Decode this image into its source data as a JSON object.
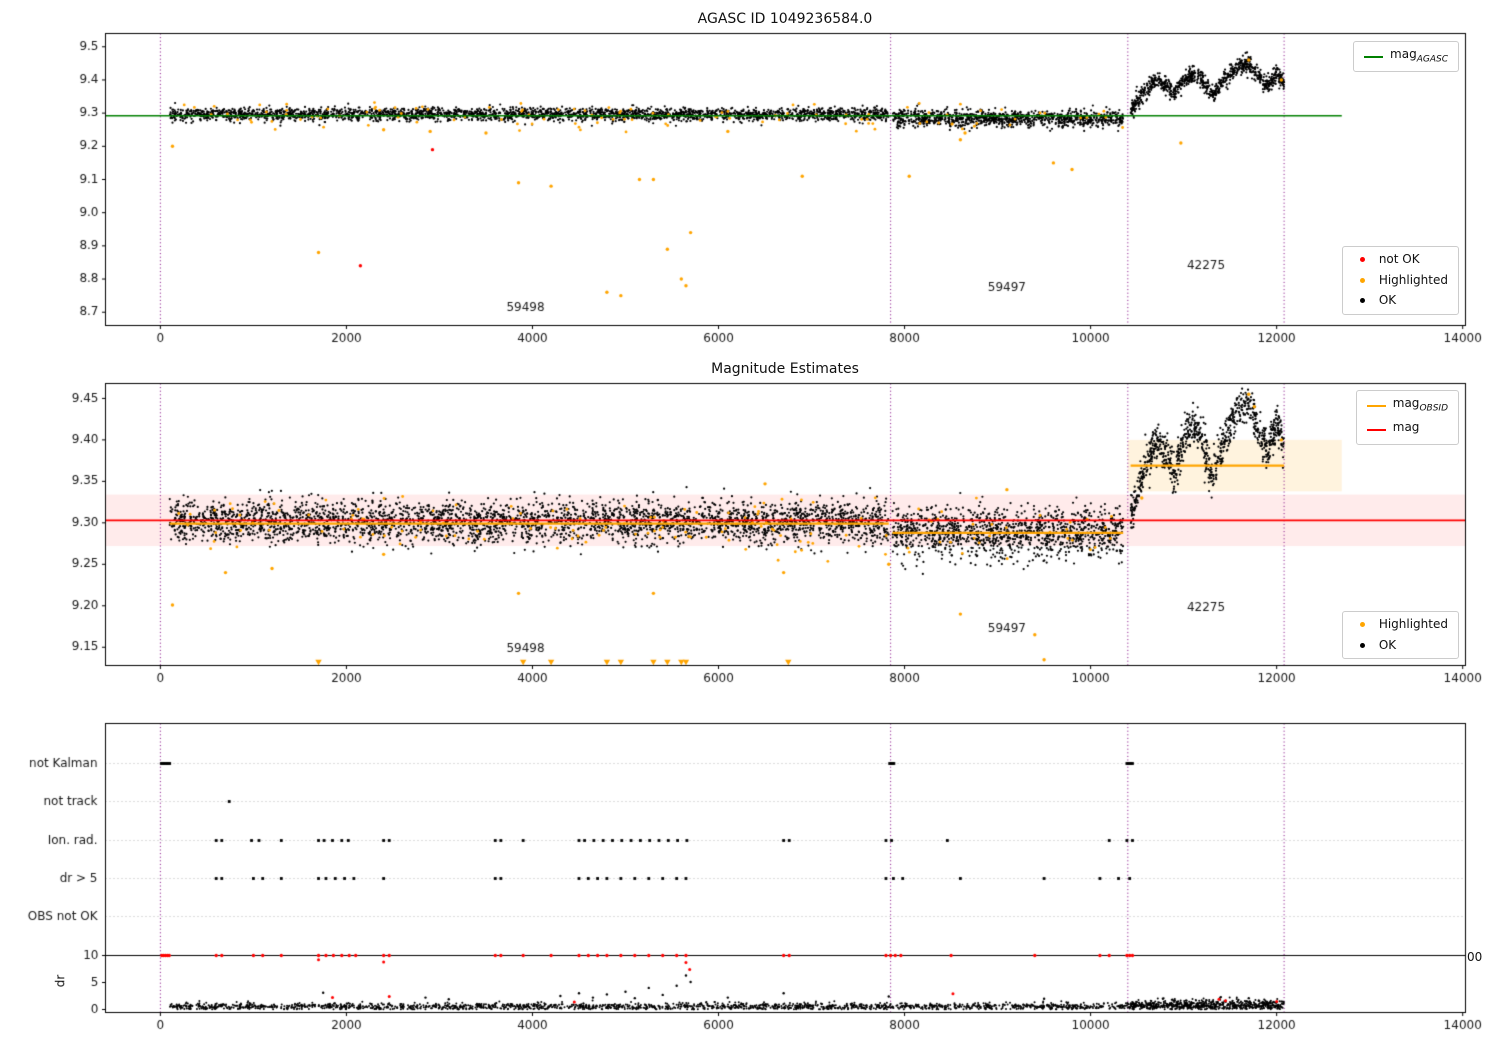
{
  "colors": {
    "vline": "#800080",
    "grid": "#b8b8b8",
    "ok": "#000000",
    "not_ok": "#ff0000",
    "highlighted": "#ffa500",
    "mag_agasc": "#008000",
    "mag": "#ff0000",
    "mag_obsid": "#ffa500"
  },
  "chart_data": [
    {
      "type": "scatter",
      "title": "AGASC ID 1049236584.0",
      "xlim": [
        -590,
        14030
      ],
      "ylim": [
        8.66,
        9.54
      ],
      "xticks": [
        0,
        2000,
        4000,
        6000,
        8000,
        10000,
        12000,
        14000
      ],
      "xtick_labels": [
        "0",
        "2000",
        "4000",
        "6000",
        "8000",
        "10000",
        "12000",
        "14000"
      ],
      "yticks": [
        8.7,
        8.8,
        8.9,
        9.0,
        9.1,
        9.2,
        9.3,
        9.4,
        9.5
      ],
      "ytick_labels": [
        "8.7",
        "8.8",
        "8.9",
        "9.0",
        "9.1",
        "9.2",
        "9.3",
        "9.4",
        "9.5"
      ],
      "vlines": [
        0,
        7850,
        10400,
        12080
      ],
      "lines": [
        {
          "y": 9.292,
          "x0": -590,
          "x1": 12700,
          "color": "#008000",
          "w": 1.6
        }
      ],
      "wave": [
        [
          10430,
          9.31
        ],
        [
          10550,
          9.355
        ],
        [
          10700,
          9.4
        ],
        [
          10800,
          9.385
        ],
        [
          10900,
          9.36
        ],
        [
          11000,
          9.4
        ],
        [
          11100,
          9.42
        ],
        [
          11200,
          9.4
        ],
        [
          11300,
          9.355
        ],
        [
          11450,
          9.405
        ],
        [
          11600,
          9.44
        ],
        [
          11700,
          9.45
        ],
        [
          11800,
          9.415
        ],
        [
          11900,
          9.38
        ],
        [
          12000,
          9.42
        ],
        [
          12080,
          9.39
        ]
      ],
      "clusters": [
        {
          "kind": "band",
          "x0": 100,
          "x1": 7830,
          "n": 2600,
          "mean": 9.296,
          "sd": 0.01,
          "clip": [
            9.245,
            9.335
          ],
          "color": "#000000",
          "r": 1.1
        },
        {
          "kind": "band",
          "x0": 7870,
          "x1": 10350,
          "n": 1000,
          "mean": 9.284,
          "sd": 0.013,
          "clip": [
            9.22,
            9.33
          ],
          "color": "#000000",
          "r": 1.1
        },
        {
          "kind": "wavy",
          "x0": 10430,
          "x1": 12080,
          "n": 850,
          "sd": 0.013,
          "color": "#000000",
          "r": 1.1
        },
        {
          "kind": "band",
          "x0": 100,
          "x1": 7830,
          "n": 90,
          "mean": 9.29,
          "sd": 0.02,
          "clip": [
            9.24,
            9.34
          ],
          "color": "#ffa500",
          "r": 1.4
        },
        {
          "kind": "band",
          "x0": 7870,
          "x1": 10350,
          "n": 25,
          "mean": 9.28,
          "sd": 0.02,
          "clip": [
            9.23,
            9.33
          ],
          "color": "#ffa500",
          "r": 1.4
        }
      ],
      "points_highlighted": [
        [
          130,
          9.2
        ],
        [
          1700,
          8.88
        ],
        [
          2400,
          9.25
        ],
        [
          2900,
          9.245
        ],
        [
          3500,
          9.24
        ],
        [
          3850,
          9.09
        ],
        [
          4200,
          9.08
        ],
        [
          4800,
          8.76
        ],
        [
          4950,
          8.75
        ],
        [
          5150,
          9.1
        ],
        [
          5300,
          9.1
        ],
        [
          5450,
          8.89
        ],
        [
          5600,
          8.8
        ],
        [
          5650,
          8.78
        ],
        [
          5700,
          8.94
        ],
        [
          6100,
          9.245
        ],
        [
          6900,
          9.11
        ],
        [
          8050,
          9.11
        ],
        [
          8600,
          9.22
        ],
        [
          8650,
          9.24
        ],
        [
          9600,
          9.15
        ],
        [
          9800,
          9.13
        ],
        [
          10970,
          9.21
        ],
        [
          11700,
          9.46
        ],
        [
          12050,
          9.4
        ]
      ],
      "points_not_ok": [
        [
          2150,
          8.84
        ],
        [
          2925,
          9.19
        ]
      ],
      "annotations": [
        {
          "text": "59498",
          "x": 3925,
          "y": 8.705
        },
        {
          "text": "59497",
          "x": 9100,
          "y": 8.765
        },
        {
          "text": "42275",
          "x": 11240,
          "y": 8.83
        }
      ],
      "legend_line": {
        "main": "mag",
        "sub": "AGASC",
        "color": "#008000"
      },
      "legend_points": [
        {
          "label": "not OK",
          "color": "#ff0000"
        },
        {
          "label": "Highlighted",
          "color": "#ffa500"
        },
        {
          "label": "OK",
          "color": "#000000"
        }
      ]
    },
    {
      "type": "scatter",
      "title": "Magnitude Estimates",
      "xlim": [
        -590,
        14030
      ],
      "ylim": [
        9.128,
        9.468
      ],
      "xticks": [
        0,
        2000,
        4000,
        6000,
        8000,
        10000,
        12000,
        14000
      ],
      "xtick_labels": [
        "0",
        "2000",
        "4000",
        "6000",
        "8000",
        "10000",
        "12000",
        "14000"
      ],
      "yticks": [
        9.15,
        9.2,
        9.25,
        9.3,
        9.35,
        9.4,
        9.45
      ],
      "ytick_labels": [
        "9.15",
        "9.20",
        "9.25",
        "9.30",
        "9.35",
        "9.40",
        "9.45"
      ],
      "vlines": [
        0,
        7850,
        10400,
        12080
      ],
      "bands": [
        {
          "x0": -590,
          "x1": 14030,
          "y0": 9.272,
          "y1": 9.334,
          "color": "rgba(255,0,0,0.08)"
        },
        {
          "x0": 10400,
          "x1": 12700,
          "y0": 9.338,
          "y1": 9.4,
          "color": "rgba(255,165,0,0.13)"
        }
      ],
      "lines": [
        {
          "y": 9.299,
          "x0": 100,
          "x1": 7830,
          "color": "#ffa500",
          "w": 2.2
        },
        {
          "y": 9.288,
          "x0": 7870,
          "x1": 10350,
          "color": "#ffa500",
          "w": 2.2
        },
        {
          "y": 9.369,
          "x0": 10430,
          "x1": 12080,
          "color": "#ffa500",
          "w": 2.2
        },
        {
          "y": 9.303,
          "x0": -590,
          "x1": 14030,
          "color": "#ff0000",
          "w": 1.6
        }
      ],
      "wave": [
        [
          10430,
          9.31
        ],
        [
          10550,
          9.355
        ],
        [
          10700,
          9.4
        ],
        [
          10800,
          9.385
        ],
        [
          10900,
          9.36
        ],
        [
          11000,
          9.4
        ],
        [
          11100,
          9.42
        ],
        [
          11200,
          9.4
        ],
        [
          11300,
          9.355
        ],
        [
          11450,
          9.405
        ],
        [
          11600,
          9.44
        ],
        [
          11700,
          9.45
        ],
        [
          11800,
          9.415
        ],
        [
          11900,
          9.38
        ],
        [
          12000,
          9.42
        ],
        [
          12080,
          9.39
        ]
      ],
      "clusters": [
        {
          "kind": "band",
          "x0": 100,
          "x1": 7830,
          "n": 3200,
          "mean": 9.301,
          "sd": 0.013,
          "clip": [
            9.248,
            9.352
          ],
          "color": "#000000",
          "r": 1.1
        },
        {
          "kind": "band",
          "x0": 7870,
          "x1": 10350,
          "n": 1200,
          "mean": 9.289,
          "sd": 0.015,
          "clip": [
            9.225,
            9.345
          ],
          "color": "#000000",
          "r": 1.1
        },
        {
          "kind": "wavy",
          "x0": 10430,
          "x1": 12080,
          "n": 900,
          "sd": 0.012,
          "color": "#000000",
          "r": 1.1
        },
        {
          "kind": "band",
          "x0": 100,
          "x1": 7830,
          "n": 120,
          "mean": 9.295,
          "sd": 0.02,
          "clip": [
            9.24,
            9.35
          ],
          "color": "#ffa500",
          "r": 1.4
        },
        {
          "kind": "band",
          "x0": 7870,
          "x1": 10350,
          "n": 30,
          "mean": 9.285,
          "sd": 0.02,
          "clip": [
            9.23,
            9.34
          ],
          "color": "#ffa500",
          "r": 1.4
        }
      ],
      "points_highlighted": [
        [
          130,
          9.201
        ],
        [
          700,
          9.24
        ],
        [
          1200,
          9.245
        ],
        [
          2400,
          9.262
        ],
        [
          3850,
          9.215
        ],
        [
          5300,
          9.215
        ],
        [
          6500,
          9.347
        ],
        [
          6700,
          9.24
        ],
        [
          7830,
          9.25
        ],
        [
          8600,
          9.19
        ],
        [
          9100,
          9.34
        ],
        [
          9400,
          9.165
        ],
        [
          9500,
          9.135
        ],
        [
          10550,
          9.33
        ],
        [
          11700,
          9.455
        ],
        [
          11760,
          9.44
        ],
        [
          12050,
          9.4
        ]
      ],
      "triangles": [
        1700,
        3900,
        4200,
        4800,
        4950,
        5300,
        5450,
        5600,
        5650,
        6750
      ],
      "annotations": [
        {
          "text": "59498",
          "x": 3925,
          "y": 9.144
        },
        {
          "text": "59497",
          "x": 9100,
          "y": 9.168
        },
        {
          "text": "42275",
          "x": 11240,
          "y": 9.194
        }
      ],
      "legend_lines": [
        {
          "main": "mag",
          "sub": "OBSID",
          "color": "#ffa500"
        },
        {
          "main": "mag",
          "sub": "",
          "color": "#ff0000"
        }
      ],
      "legend_points": [
        {
          "label": "Highlighted",
          "color": "#ffa500"
        },
        {
          "label": "OK",
          "color": "#000000"
        }
      ]
    },
    {
      "type": "scatter",
      "title": "",
      "ylabel": "dr",
      "clipped_text": "00",
      "xlim": [
        -590,
        14030
      ],
      "xticks": [
        0,
        2000,
        4000,
        6000,
        8000,
        10000,
        12000,
        14000
      ],
      "xtick_labels": [
        "0",
        "2000",
        "4000",
        "6000",
        "8000",
        "10000",
        "12000",
        "14000"
      ],
      "vlines": [
        0,
        7850,
        10400,
        12080
      ],
      "categories": [
        {
          "label": "not Kalman",
          "xs": [
            10,
            25,
            40,
            55,
            70,
            85,
            100,
            7840,
            7855,
            7870,
            7885,
            10390,
            10405,
            10420,
            10435,
            10450
          ]
        },
        {
          "label": "not track",
          "xs": [
            740
          ]
        },
        {
          "label": "Ion. rad.",
          "xs": [
            600,
            660,
            980,
            1060,
            1300,
            1700,
            1760,
            1850,
            1950,
            2020,
            2400,
            2460,
            3600,
            3660,
            3900,
            4500,
            4560,
            4660,
            4760,
            4860,
            4960,
            5060,
            5160,
            5260,
            5360,
            5460,
            5560,
            5660,
            6700,
            6760,
            7800,
            7860,
            8460,
            10200,
            10390,
            10450
          ]
        },
        {
          "label": "dr > 5",
          "xs": [
            600,
            660,
            1000,
            1100,
            1300,
            1700,
            1780,
            1880,
            1980,
            2080,
            2400,
            3600,
            3660,
            4500,
            4600,
            4700,
            4800,
            4950,
            5100,
            5250,
            5400,
            5550,
            5650,
            7800,
            7880,
            7980,
            8600,
            9500,
            10100,
            10300,
            10420
          ]
        },
        {
          "label": "OBS not OK",
          "xs": []
        }
      ],
      "dr": {
        "ticks": [
          0,
          5,
          10
        ],
        "tick_labels": [
          "0",
          "5",
          "10"
        ],
        "hline": 10,
        "baseline": {
          "x0": 100,
          "x1": 12080,
          "n": 2100,
          "mean": 0.55,
          "sd": 0.33,
          "clip": [
            0.04,
            2.3
          ]
        },
        "right_cluster": {
          "x0": 10430,
          "x1": 12080,
          "n": 380,
          "mean": 1.05,
          "sd": 0.45,
          "clip": [
            0.15,
            2.6
          ]
        },
        "black_extra": [
          [
            1750,
            3.1
          ],
          [
            2850,
            2.2
          ],
          [
            3100,
            1.9
          ],
          [
            4300,
            2.5
          ],
          [
            4500,
            3.0
          ],
          [
            4650,
            2.2
          ],
          [
            4800,
            2.8
          ],
          [
            5000,
            3.3
          ],
          [
            5100,
            2.1
          ],
          [
            5250,
            4.0
          ],
          [
            5400,
            2.7
          ],
          [
            5550,
            4.4
          ],
          [
            5650,
            6.3
          ],
          [
            5700,
            5.1
          ],
          [
            6100,
            2.2
          ],
          [
            6700,
            3.0
          ],
          [
            7830,
            2.4
          ],
          [
            9500,
            2.0
          ],
          [
            11400,
            2.3
          ],
          [
            11700,
            2.1
          ]
        ],
        "red_at_limit_xs": [
          15,
          35,
          55,
          75,
          95,
          600,
          660,
          1000,
          1100,
          1300,
          1700,
          1780,
          1860,
          1950,
          2030,
          2100,
          2400,
          2460,
          3600,
          3660,
          3900,
          4200,
          4500,
          4600,
          4700,
          4800,
          4950,
          5100,
          5250,
          5400,
          5550,
          5650,
          6700,
          6760,
          7800,
          7850,
          7900,
          7960,
          8500,
          9400,
          10100,
          10200,
          10390,
          10420,
          10450
        ],
        "red_points": [
          [
            1700,
            9.2
          ],
          [
            1850,
            2.2
          ],
          [
            2400,
            8.8
          ],
          [
            2460,
            2.4
          ],
          [
            4450,
            1.4
          ],
          [
            5650,
            8.7
          ],
          [
            5690,
            7.4
          ],
          [
            8520,
            2.9
          ],
          [
            11380,
            1.9
          ],
          [
            11450,
            1.6
          ],
          [
            12000,
            1.5
          ]
        ]
      }
    }
  ]
}
